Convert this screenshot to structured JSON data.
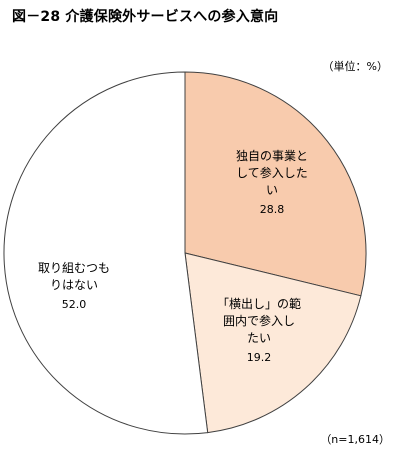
{
  "header": {
    "title": "図－28 介護保険外サービスへの参入意向",
    "unit": "（単位：%）"
  },
  "footer": {
    "note": "（n=1,614）"
  },
  "chart_data": {
    "type": "pie",
    "title": "図－28 介護保険外サービスへの参入意向",
    "unit": "%",
    "n": "1,614",
    "slices": [
      {
        "label_lines": [
          "独自の事業と",
          "して参入した",
          "い"
        ],
        "value": 28.8,
        "color": "#f8cbad"
      },
      {
        "label_lines": [
          "「横出し」の範",
          "囲内で参入し",
          "たい"
        ],
        "value": 19.2,
        "color": "#fde9d9"
      },
      {
        "label_lines": [
          "取り組むつも",
          "りはない"
        ],
        "value": 52.0,
        "color": "#ffffff"
      }
    ],
    "start_angle": "12 o'clock",
    "direction": "clockwise",
    "border_color": "#404040"
  }
}
